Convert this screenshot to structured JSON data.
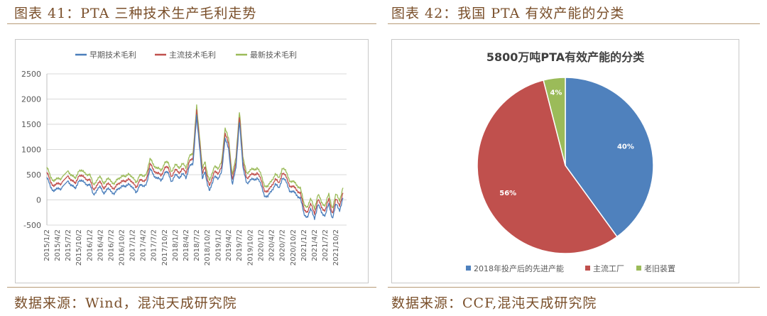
{
  "left_panel": {
    "figure_title": "图表 41：PTA 三种技术生产毛利走势",
    "source": "数据来源：Wind，混沌天成研究院"
  },
  "right_panel": {
    "figure_title": "图表 42：我国 PTA 有效产能的分类",
    "source": "数据来源：CCF,混沌天成研究院"
  },
  "colors": {
    "early": "#4a7ebb",
    "main": "#c0504d",
    "latest": "#9bbb59",
    "heading": "#7a4f2a",
    "rule": "#b79b77"
  },
  "chart_data": [
    {
      "type": "line",
      "title": "",
      "xlabel": "",
      "ylabel": "",
      "ylim": [
        -500,
        2500
      ],
      "yticks": [
        -500,
        0,
        500,
        1000,
        1500,
        2000,
        2500
      ],
      "grid": true,
      "legend_position": "top",
      "x_tick_labels": [
        "2015/1/2",
        "2015/4/2",
        "2015/7/2",
        "2015/10/2",
        "2016/1/2",
        "2016/4/2",
        "2016/7/2",
        "2016/10/2",
        "2017/1/2",
        "2017/4/2",
        "2017/7/2",
        "2017/10/2",
        "2018/1/2",
        "2018/4/2",
        "2018/7/2",
        "2018/10/2",
        "2019/1/2",
        "2019/4/2",
        "2019/7/2",
        "2019/10/2",
        "2020/1/2",
        "2020/4/2",
        "2020/7/2",
        "2020/10/2",
        "2021/1/2",
        "2021/4/2",
        "2021/7/2",
        "2021/10/2"
      ],
      "series_offsets": [
        0,
        100,
        200
      ],
      "series": [
        {
          "name": "早期技术毛利",
          "color": "#4a7ebb",
          "x": [
            "2015/1/2",
            "2015/2/1",
            "2015/3/1",
            "2015/4/2",
            "2015/5/1",
            "2015/7/2",
            "2015/8/1",
            "2015/9/1",
            "2015/10/2",
            "2015/11/1",
            "2015/12/1",
            "2016/1/2",
            "2016/2/1",
            "2016/3/1",
            "2016/4/2",
            "2016/5/1",
            "2016/6/1",
            "2016/7/2",
            "2016/8/1",
            "2016/9/1",
            "2016/10/2",
            "2016/11/1",
            "2016/12/1",
            "2017/1/2",
            "2017/2/1",
            "2017/3/1",
            "2017/4/2",
            "2017/5/1",
            "2017/6/1",
            "2017/7/2",
            "2017/8/1",
            "2017/9/1",
            "2017/10/2",
            "2017/11/1",
            "2017/12/1",
            "2018/1/2",
            "2018/2/1",
            "2018/3/1",
            "2018/4/2",
            "2018/5/1",
            "2018/6/1",
            "2018/7/2",
            "2018/8/1",
            "2018/8/20",
            "2018/9/10",
            "2018/10/2",
            "2018/10/20",
            "2018/11/1",
            "2018/12/1",
            "2019/1/2",
            "2019/2/1",
            "2019/3/1",
            "2019/4/2",
            "2019/5/1",
            "2019/6/1",
            "2019/7/2",
            "2019/8/1",
            "2019/9/1",
            "2019/10/2",
            "2019/11/1",
            "2019/12/1",
            "2020/1/2",
            "2020/2/1",
            "2020/3/1",
            "2020/4/2",
            "2020/5/1",
            "2020/6/1",
            "2020/7/2",
            "2020/8/1",
            "2020/9/1",
            "2020/10/2",
            "2020/11/1",
            "2020/12/1",
            "2021/1/2",
            "2021/2/1",
            "2021/3/1",
            "2021/4/2",
            "2021/5/1",
            "2021/6/1",
            "2021/7/2",
            "2021/8/1",
            "2021/9/1",
            "2021/10/2",
            "2021/11/1",
            "2021/12/1"
          ],
          "values": [
            450,
            250,
            200,
            200,
            230,
            380,
            300,
            200,
            410,
            350,
            330,
            300,
            100,
            200,
            240,
            150,
            200,
            190,
            120,
            210,
            300,
            230,
            350,
            220,
            150,
            300,
            250,
            350,
            600,
            500,
            420,
            380,
            550,
            520,
            380,
            480,
            450,
            520,
            420,
            700,
            680,
            1700,
            900,
            400,
            600,
            300,
            150,
            250,
            500,
            380,
            600,
            1200,
            1000,
            300,
            600,
            1600,
            600,
            350,
            380,
            400,
            450,
            280,
            100,
            50,
            200,
            310,
            220,
            450,
            350,
            200,
            150,
            100,
            50,
            -300,
            -320,
            -200,
            -350,
            -100,
            -250,
            -300,
            -100,
            -350,
            -100,
            -200,
            50
          ]
        },
        {
          "name": "主流技术毛利",
          "color": "#c0504d"
        },
        {
          "name": "最新技术毛利",
          "color": "#9bbb59"
        }
      ]
    },
    {
      "type": "pie",
      "title": "5800万吨PTA有效产能的分类",
      "legend_position": "bottom",
      "slices": [
        {
          "label": "2018年投产后的先进产能",
          "value": 40,
          "value_label": "40%",
          "color": "#4f81bd"
        },
        {
          "label": "主流工厂",
          "value": 56,
          "value_label": "56%",
          "color": "#c0504d"
        },
        {
          "label": "老旧装置",
          "value": 4,
          "value_label": "4%",
          "color": "#9bbb59"
        }
      ]
    }
  ]
}
